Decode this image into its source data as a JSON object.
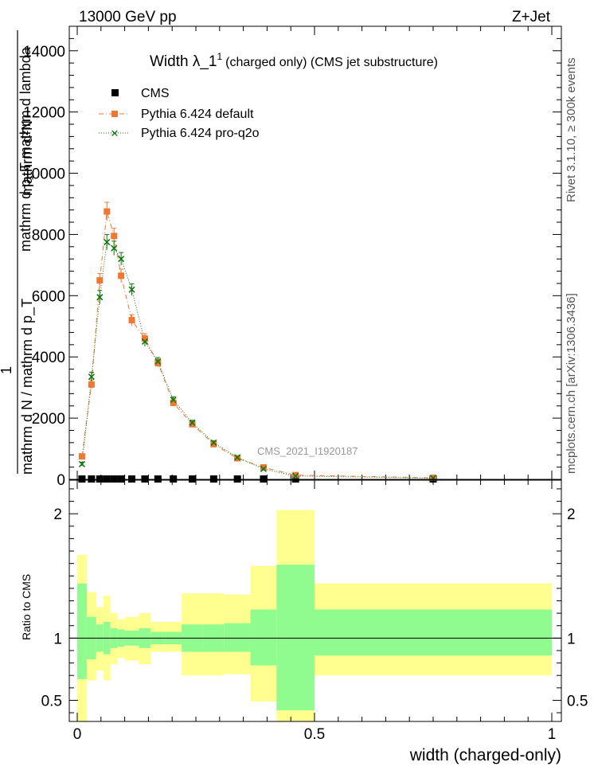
{
  "header": {
    "left": "13000 GeV pp",
    "right": "Z+Jet"
  },
  "side_labels": {
    "right_top": "Rivet 3.1.10, ≥ 300k events",
    "right_bottom": "mcplots.cern.ch [arXiv:1306.3436]"
  },
  "chart_data": [
    {
      "type": "scatter",
      "title": "Width λ_1",
      "title_sup": "1",
      "title_suffix": "(charged only) (CMS jet substructure)",
      "ylabel_top": "mathrm d²N",
      "ylabel_mid": "mathrm d p_T mathrm d lambda",
      "ylabel_one": "1",
      "ylabel_bottom": "mathrm d N / mathrm d p_T",
      "watermark": "CMS_2021_I1920187",
      "xlim": [
        0,
        1
      ],
      "ylim": [
        0,
        14800
      ],
      "yticks": [
        {
          "v": 0,
          "label": "0"
        },
        {
          "v": 2000,
          "label": "2000"
        },
        {
          "v": 4000,
          "label": "4000"
        },
        {
          "v": 6000,
          "label": "6000"
        },
        {
          "v": 8000,
          "label": "8000"
        },
        {
          "v": 10000,
          "label": "10000"
        },
        {
          "v": 12000,
          "label": "12000"
        },
        {
          "v": 14000,
          "label": "14000"
        }
      ],
      "bins": [
        0.0,
        0.02,
        0.04,
        0.055,
        0.07,
        0.085,
        0.1,
        0.13,
        0.155,
        0.185,
        0.22,
        0.265,
        0.31,
        0.365,
        0.42,
        0.5,
        1.0
      ],
      "legend": [
        "CMS",
        "Pythia 6.424 default",
        "Pythia 6.424 pro-q2o"
      ],
      "colors": {
        "cms": "#000000",
        "default": "#ee7733",
        "proq2o": "#117711"
      },
      "series": [
        {
          "name": "CMS",
          "x": [
            0.01,
            0.03,
            0.0475,
            0.0625,
            0.0775,
            0.0925,
            0.115,
            0.1425,
            0.17,
            0.2025,
            0.2425,
            0.2875,
            0.3375,
            0.3925,
            0.46,
            0.75
          ],
          "y": [
            0,
            0,
            0,
            0,
            0,
            0,
            0,
            0,
            0,
            0,
            0,
            0,
            0,
            0,
            0,
            0
          ]
        },
        {
          "name": "Pythia 6.424 default",
          "x": [
            0.01,
            0.03,
            0.0475,
            0.0625,
            0.0775,
            0.0925,
            0.115,
            0.1425,
            0.17,
            0.2025,
            0.2425,
            0.2875,
            0.3375,
            0.3925,
            0.46,
            0.75
          ],
          "y": [
            750,
            3100,
            6500,
            8750,
            7950,
            6650,
            5200,
            4600,
            3800,
            2500,
            1800,
            1150,
            690,
            390,
            140,
            50
          ],
          "err": [
            60,
            150,
            220,
            300,
            250,
            220,
            180,
            160,
            130,
            100,
            80,
            60,
            45,
            35,
            25,
            15
          ]
        },
        {
          "name": "Pythia 6.424 pro-q2o",
          "x": [
            0.01,
            0.03,
            0.0475,
            0.0625,
            0.0775,
            0.0925,
            0.115,
            0.1425,
            0.17,
            0.2025,
            0.2425,
            0.2875,
            0.3375,
            0.3925,
            0.46,
            0.75
          ],
          "y": [
            500,
            3350,
            5950,
            7750,
            7550,
            7200,
            6200,
            4500,
            3850,
            2600,
            1850,
            1200,
            720,
            340,
            110,
            40
          ],
          "err": [
            60,
            150,
            220,
            250,
            230,
            210,
            190,
            160,
            130,
            100,
            80,
            60,
            45,
            35,
            25,
            15
          ]
        }
      ]
    },
    {
      "type": "bar",
      "ylabel": "Ratio to CMS",
      "xlabel": "width (charged-only)",
      "xlim": [
        0,
        1
      ],
      "ylim": [
        0.33,
        2.27
      ],
      "yticks": [
        {
          "v": 0.5,
          "label": "0.5"
        },
        {
          "v": 1,
          "label": "1"
        },
        {
          "v": 2,
          "label": "2"
        }
      ],
      "xticks": [
        {
          "v": 0,
          "label": "0"
        },
        {
          "v": 0.5,
          "label": "0.5"
        },
        {
          "v": 1,
          "label": "1"
        }
      ],
      "band_colors": {
        "stat": "#90fc90",
        "total": "#ffff90"
      },
      "bins": [
        0.0,
        0.02,
        0.04,
        0.055,
        0.07,
        0.085,
        0.1,
        0.13,
        0.155,
        0.185,
        0.22,
        0.265,
        0.31,
        0.365,
        0.42,
        0.5,
        1.0
      ],
      "stat_lo": [
        0.67,
        0.83,
        0.89,
        0.87,
        0.92,
        0.93,
        0.94,
        0.92,
        0.95,
        0.95,
        0.89,
        0.89,
        0.89,
        0.78,
        0.42,
        0.86
      ],
      "stat_hi": [
        1.44,
        1.17,
        1.11,
        1.13,
        1.08,
        1.07,
        1.06,
        1.08,
        1.05,
        1.05,
        1.11,
        1.11,
        1.12,
        1.23,
        1.59,
        1.23
      ],
      "total_lo": [
        0.33,
        0.66,
        0.74,
        0.66,
        0.79,
        0.84,
        0.82,
        0.79,
        0.89,
        0.89,
        0.7,
        0.7,
        0.71,
        0.49,
        0.33,
        0.7
      ],
      "total_hi": [
        1.67,
        1.37,
        1.25,
        1.34,
        1.2,
        1.15,
        1.17,
        1.2,
        1.13,
        1.13,
        1.36,
        1.36,
        1.35,
        1.58,
        2.03,
        1.44
      ]
    }
  ]
}
